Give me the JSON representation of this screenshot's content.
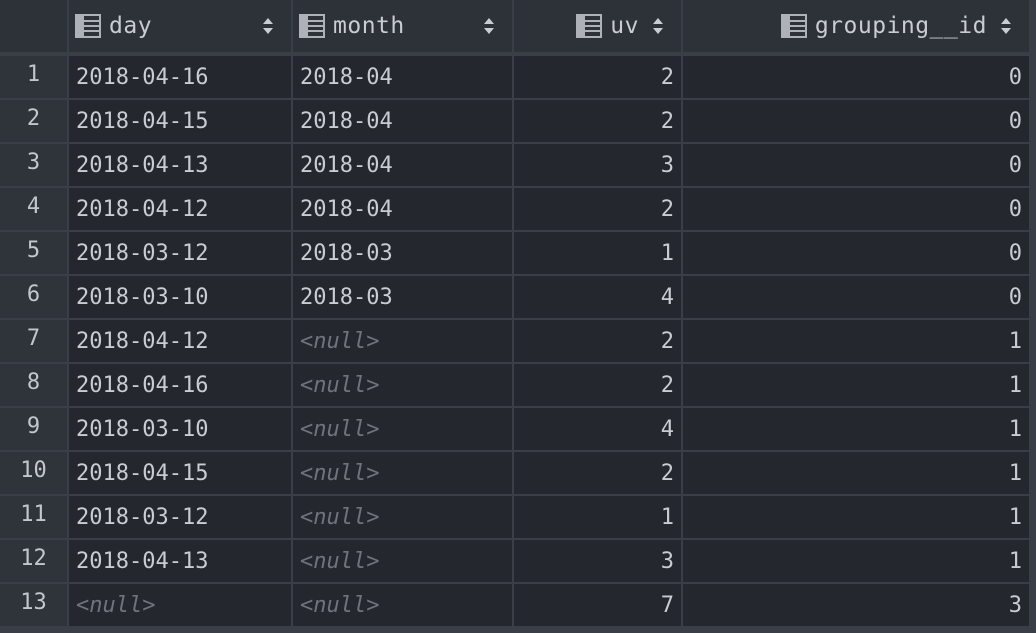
{
  "columns": [
    {
      "label": "day",
      "icon": "table-column-icon",
      "sort_icon": "sort-arrows-icon"
    },
    {
      "label": "month",
      "icon": "table-column-icon",
      "sort_icon": "sort-arrows-icon"
    },
    {
      "label": "uv",
      "icon": "table-column-icon",
      "sort_icon": "sort-arrows-icon"
    },
    {
      "label": "grouping__id",
      "icon": "table-column-icon",
      "sort_icon": "sort-arrows-icon"
    }
  ],
  "null_text": "<null>",
  "rows": [
    {
      "num": "1",
      "day": "2018-04-16",
      "month": "2018-04",
      "uv": "2",
      "grouping_id": "0"
    },
    {
      "num": "2",
      "day": "2018-04-15",
      "month": "2018-04",
      "uv": "2",
      "grouping_id": "0"
    },
    {
      "num": "3",
      "day": "2018-04-13",
      "month": "2018-04",
      "uv": "3",
      "grouping_id": "0"
    },
    {
      "num": "4",
      "day": "2018-04-12",
      "month": "2018-04",
      "uv": "2",
      "grouping_id": "0"
    },
    {
      "num": "5",
      "day": "2018-03-12",
      "month": "2018-03",
      "uv": "1",
      "grouping_id": "0"
    },
    {
      "num": "6",
      "day": "2018-03-10",
      "month": "2018-03",
      "uv": "4",
      "grouping_id": "0"
    },
    {
      "num": "7",
      "day": "2018-04-12",
      "month": null,
      "uv": "2",
      "grouping_id": "1"
    },
    {
      "num": "8",
      "day": "2018-04-16",
      "month": null,
      "uv": "2",
      "grouping_id": "1"
    },
    {
      "num": "9",
      "day": "2018-03-10",
      "month": null,
      "uv": "4",
      "grouping_id": "1"
    },
    {
      "num": "10",
      "day": "2018-04-15",
      "month": null,
      "uv": "2",
      "grouping_id": "1"
    },
    {
      "num": "11",
      "day": "2018-03-12",
      "month": null,
      "uv": "1",
      "grouping_id": "1"
    },
    {
      "num": "12",
      "day": "2018-04-13",
      "month": null,
      "uv": "3",
      "grouping_id": "1"
    },
    {
      "num": "13",
      "day": null,
      "month": null,
      "uv": "7",
      "grouping_id": "3"
    }
  ],
  "colors": {
    "background": "#2b2f36",
    "cell": "#24282e",
    "header": "#2d3138",
    "gutter": "#2f333a",
    "text": "#c9ccd1",
    "null_text": "#6f747c"
  }
}
